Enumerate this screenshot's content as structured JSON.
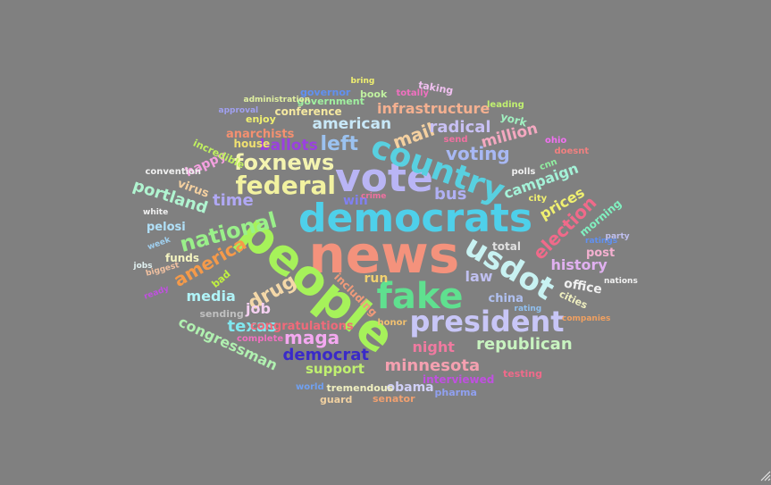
{
  "wordcloud": {
    "background": "#808080",
    "words": [
      {
        "text": "news",
        "color": "#f4927c"
      },
      {
        "text": "people",
        "color": "#a6f25a"
      },
      {
        "text": "democrats",
        "color": "#4ed0ea"
      },
      {
        "text": "fake",
        "color": "#5fe08f"
      },
      {
        "text": "vote",
        "color": "#b9b5f5"
      },
      {
        "text": "president",
        "color": "#c8c6f7"
      },
      {
        "text": "country",
        "color": "#58d0e0"
      },
      {
        "text": "usdot",
        "color": "#c8f2f2"
      },
      {
        "text": "federal",
        "color": "#f2f2a0"
      },
      {
        "text": "national",
        "color": "#9af08a"
      },
      {
        "text": "foxnews",
        "color": "#f4f4b0"
      },
      {
        "text": "drug",
        "color": "#f4d8a8"
      },
      {
        "text": "america",
        "color": "#f59a4a"
      },
      {
        "text": "left",
        "color": "#9bc2f0"
      },
      {
        "text": "maga",
        "color": "#f4a8f0"
      },
      {
        "text": "republican",
        "color": "#c8f4c0"
      },
      {
        "text": "minnesota",
        "color": "#f4a0b0"
      },
      {
        "text": "democrat",
        "color": "#3a2ac8"
      },
      {
        "text": "campaign",
        "color": "#a4f2d8"
      },
      {
        "text": "mail",
        "color": "#f4d0a0"
      },
      {
        "text": "voting",
        "color": "#a8b8f4"
      },
      {
        "text": "radical",
        "color": "#c8c0f4"
      },
      {
        "text": "infrastructure",
        "color": "#f4b090"
      },
      {
        "text": "election",
        "color": "#f06a8a"
      },
      {
        "text": "bus",
        "color": "#b0b0f4"
      },
      {
        "text": "texas",
        "color": "#80e8f0"
      },
      {
        "text": "time",
        "color": "#b0a8f4"
      },
      {
        "text": "american",
        "color": "#c8e8f8"
      },
      {
        "text": "million",
        "color": "#f4a8c0"
      },
      {
        "text": "history",
        "color": "#e0b0f0"
      },
      {
        "text": "portland",
        "color": "#b0f4d0"
      },
      {
        "text": "ballots",
        "color": "#9a40e0"
      },
      {
        "text": "congressman",
        "color": "#b0f0b0"
      },
      {
        "text": "support",
        "color": "#c0f070"
      },
      {
        "text": "night",
        "color": "#f07aa0"
      },
      {
        "text": "media",
        "color": "#b0f4f8"
      },
      {
        "text": "job",
        "color": "#f4d0f0"
      },
      {
        "text": "prices",
        "color": "#f0f070"
      },
      {
        "text": "law",
        "color": "#c0c0f0"
      },
      {
        "text": "obama",
        "color": "#d0d0f8"
      },
      {
        "text": "office",
        "color": "#f0f0f0"
      },
      {
        "text": "post",
        "color": "#f4b0d0"
      },
      {
        "text": "happy",
        "color": "#f4a0e0"
      },
      {
        "text": "china",
        "color": "#b0c0f0"
      },
      {
        "text": "run",
        "color": "#f0d070"
      },
      {
        "text": "win",
        "color": "#8080f0"
      },
      {
        "text": "conference",
        "color": "#f4e8a0"
      },
      {
        "text": "total",
        "color": "#e0e0e0"
      },
      {
        "text": "pelosi",
        "color": "#b0e0f8"
      },
      {
        "text": "funds",
        "color": "#f4f4c0"
      },
      {
        "text": "virus",
        "color": "#f4d0a0"
      },
      {
        "text": "anarchists",
        "color": "#f49070"
      },
      {
        "text": "interviewed",
        "color": "#c050e0"
      },
      {
        "text": "including",
        "color": "#f09a7a"
      },
      {
        "text": "york",
        "color": "#a0f0c0"
      },
      {
        "text": "morning",
        "color": "#80f0c0"
      },
      {
        "text": "congratulations",
        "color": "#f06a7a"
      },
      {
        "text": "bad",
        "color": "#c0f040"
      },
      {
        "text": "house",
        "color": "#f0e070"
      },
      {
        "text": "cities",
        "color": "#f0f0c0"
      },
      {
        "text": "enjoy",
        "color": "#f0f070"
      },
      {
        "text": "governor",
        "color": "#6090f0"
      },
      {
        "text": "incredible",
        "color": "#c0f060"
      },
      {
        "text": "book",
        "color": "#c0f0a0"
      },
      {
        "text": "taking",
        "color": "#f0c0f0"
      },
      {
        "text": "government",
        "color": "#a0f0a0"
      },
      {
        "text": "senator",
        "color": "#f0a070"
      },
      {
        "text": "sending",
        "color": "#c0c0c0"
      },
      {
        "text": "guard",
        "color": "#f0d0a0"
      },
      {
        "text": "tremendous",
        "color": "#f0f0c0"
      },
      {
        "text": "pharma",
        "color": "#90a0f0"
      },
      {
        "text": "testing",
        "color": "#f06a8a"
      },
      {
        "text": "world",
        "color": "#70a0f0"
      },
      {
        "text": "complete",
        "color": "#f070c0"
      },
      {
        "text": "honor",
        "color": "#f0c070"
      },
      {
        "text": "send",
        "color": "#f070a0"
      },
      {
        "text": "city",
        "color": "#f0f070"
      },
      {
        "text": "polls",
        "color": "#f0f0f0"
      },
      {
        "text": "cnn",
        "color": "#90f0a0"
      },
      {
        "text": "ohio",
        "color": "#f070f0"
      },
      {
        "text": "doesnt",
        "color": "#f08080"
      },
      {
        "text": "leading",
        "color": "#c0f070"
      },
      {
        "text": "totally",
        "color": "#f070c0"
      },
      {
        "text": "bring",
        "color": "#f0f070"
      },
      {
        "text": "administration",
        "color": "#e0f0a0"
      },
      {
        "text": "approval",
        "color": "#a0a0f0"
      },
      {
        "text": "convention",
        "color": "#f0f0f0"
      },
      {
        "text": "white",
        "color": "#f0f0f0"
      },
      {
        "text": "week",
        "color": "#a0d0f0"
      },
      {
        "text": "jobs",
        "color": "#e0f0f0"
      },
      {
        "text": "biggest",
        "color": "#f0c0a0"
      },
      {
        "text": "ready",
        "color": "#c050e0"
      },
      {
        "text": "ratings",
        "color": "#6090f0"
      },
      {
        "text": "party",
        "color": "#c0c0f0"
      },
      {
        "text": "nations",
        "color": "#f0f0f0"
      },
      {
        "text": "companies",
        "color": "#f0a060"
      },
      {
        "text": "rating",
        "color": "#90c0f0"
      },
      {
        "text": "crime",
        "color": "#f070a0"
      },
      {
        "text": "sad",
        "color": "#c050e0"
      }
    ]
  }
}
